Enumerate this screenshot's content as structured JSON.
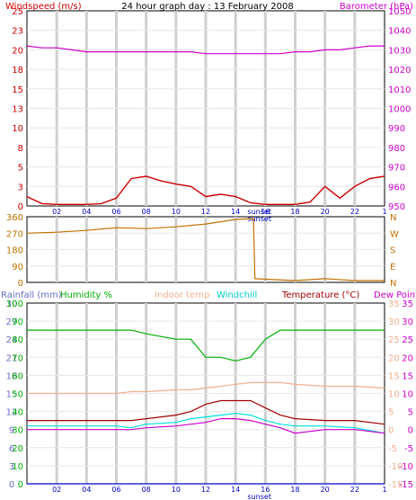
{
  "title": "24 hour graph day : 13 February 2008",
  "wind_panel": {
    "left_label": "Windspeed (m/s)",
    "right_label": "Barometer (hPa)",
    "left_ticks": [
      "25",
      "23",
      "20",
      "18",
      "15",
      "13",
      "10",
      "8",
      "5",
      "3",
      "0"
    ],
    "right_ticks": [
      "1050",
      "1040",
      "1030",
      "1020",
      "1010",
      "1000",
      "990",
      "980",
      "970",
      "960",
      "950"
    ]
  },
  "dir_panel": {
    "left_ticks": [
      "360",
      "270",
      "180",
      "90",
      "0"
    ],
    "right_ticks": [
      "N",
      "W",
      "S",
      "E",
      "N"
    ]
  },
  "bottom_panel": {
    "labels": [
      "Rainfall (mm)",
      "Humidity %",
      "Indoor temp",
      "Windchill",
      "Temperature (°C)",
      "Dew Point"
    ],
    "rain_ticks": [
      "30",
      "27",
      "24",
      "21",
      "18",
      "15",
      "12",
      "9",
      "6",
      "3",
      "0"
    ],
    "hum_ticks": [
      "100",
      "90",
      "80",
      "70",
      "60",
      "50",
      "40",
      "30",
      "20",
      "10",
      "0"
    ],
    "temp_ticks_left": [
      "35",
      "30",
      "25",
      "20",
      "15",
      "10",
      "5",
      "0",
      "-5",
      "-10",
      "-15"
    ],
    "temp_ticks_right": [
      "35",
      "30",
      "25",
      "20",
      "15",
      "10",
      "5",
      "0",
      "-5",
      "-10",
      "-15"
    ]
  },
  "x_ticks": [
    "02",
    "04",
    "06",
    "08",
    "10",
    "12",
    "14",
    "16",
    "18",
    "20",
    "22"
  ],
  "sunset_label": "sunset",
  "colors": {
    "wind": "#cc0000",
    "gust_avg": "#0000cc",
    "baro": "#cc00cc",
    "dir": "#c07000",
    "humidity": "#00b000",
    "indoor": "#f0b090",
    "windchill": "#00dddd",
    "temperature": "#a00000",
    "dewpoint": "#cc00cc",
    "rain": "#0000cc",
    "axis_blue": "#6a6acd"
  },
  "chart_data": [
    {
      "type": "line",
      "x": [
        0,
        1,
        2,
        3,
        4,
        5,
        6,
        7,
        8,
        9,
        10,
        11,
        12,
        13,
        14,
        15,
        16,
        17,
        18,
        19,
        20,
        21,
        22,
        23,
        24
      ],
      "series": [
        {
          "values": [
            1.2,
            0.3,
            0.2,
            0.2,
            0.2,
            0.3,
            1.0,
            3.5,
            3.8,
            3.2,
            2.8,
            2.5,
            1.2,
            1.5,
            1.2,
            0.4,
            0.2,
            0.2,
            0.2,
            0.5,
            2.5,
            1.0,
            2.5,
            3.5,
            3.8
          ]
        },
        {
          "values": [
            1032,
            1031,
            1031,
            1030,
            1029,
            1029,
            1029,
            1029,
            1029,
            1029,
            1029,
            1029,
            1028,
            1028,
            1028,
            1028,
            1028,
            1028,
            1029,
            1029,
            1030,
            1030,
            1031,
            1032,
            1032
          ]
        }
      ],
      "ylim": [
        0,
        25
      ],
      "ylim_right": [
        950,
        1050
      ]
    },
    {
      "type": "line",
      "x": [
        0,
        2,
        4,
        6,
        8,
        10,
        12,
        14,
        15.2,
        15.3,
        18,
        20,
        22,
        24
      ],
      "series": [
        {
          "values": [
            270,
            275,
            285,
            300,
            295,
            305,
            320,
            345,
            350,
            20,
            10,
            20,
            10,
            10
          ]
        }
      ],
      "ylim": [
        0,
        360
      ]
    },
    {
      "type": "line",
      "x": [
        0,
        2,
        4,
        6,
        7,
        8,
        10,
        11,
        12,
        13,
        14,
        15,
        16,
        17,
        18,
        20,
        22,
        24
      ],
      "series": [
        {
          "values": [
            85,
            85,
            85,
            85,
            85,
            83,
            80,
            80,
            70,
            70,
            68,
            70,
            80,
            85,
            85,
            85,
            85,
            85
          ]
        },
        {
          "values": [
            10,
            10,
            10,
            10,
            10.5,
            10.5,
            11,
            11,
            11.5,
            12,
            12.5,
            13,
            13,
            13,
            12.5,
            12,
            12,
            11.5
          ]
        },
        {
          "values": [
            1,
            1,
            1,
            1,
            0.5,
            1.5,
            2,
            3,
            3.5,
            4,
            4.5,
            4,
            2.5,
            1.5,
            1,
            1,
            0.5,
            -1
          ]
        },
        {
          "values": [
            2.5,
            2.5,
            2.5,
            2.5,
            2.5,
            3,
            4,
            5,
            7,
            8,
            8,
            8,
            6,
            4,
            3,
            2.5,
            2.5,
            1.5
          ]
        },
        {
          "values": [
            0,
            0,
            0,
            0,
            0,
            0.5,
            1,
            1.5,
            2,
            3,
            3,
            2.5,
            1.5,
            0.5,
            -1,
            0,
            0,
            -1
          ]
        },
        {
          "values": [
            0,
            0,
            0,
            0,
            0,
            0,
            0,
            0,
            0,
            0,
            0,
            0,
            0,
            0,
            0,
            0,
            0,
            0
          ]
        }
      ],
      "ylim": [
        -15,
        35
      ]
    }
  ]
}
